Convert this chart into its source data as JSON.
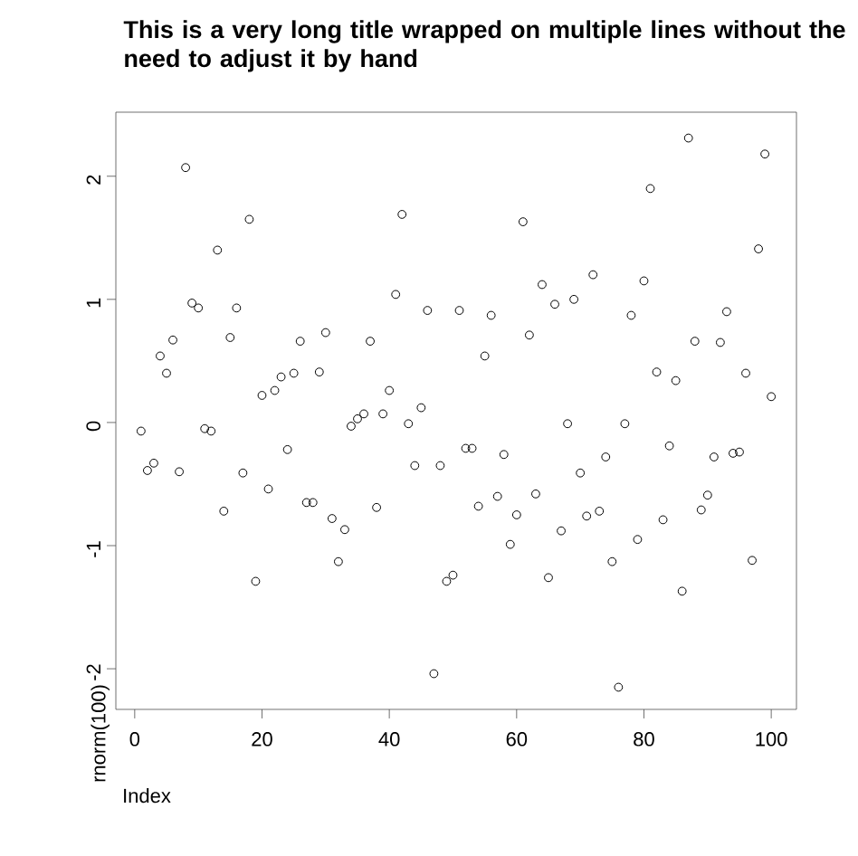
{
  "chart_data": {
    "type": "scatter",
    "title": "This is a very long title wrapped on multiple lines without the need to adjust it by hand",
    "xlabel": "Index",
    "ylabel": "rnorm(100)",
    "x": [
      1,
      2,
      3,
      4,
      5,
      6,
      7,
      8,
      9,
      10,
      11,
      12,
      13,
      14,
      15,
      16,
      17,
      18,
      19,
      20,
      21,
      22,
      23,
      24,
      25,
      26,
      27,
      28,
      29,
      30,
      31,
      32,
      33,
      34,
      35,
      36,
      37,
      38,
      39,
      40,
      41,
      42,
      43,
      44,
      45,
      46,
      47,
      48,
      49,
      50,
      51,
      52,
      53,
      54,
      55,
      56,
      57,
      58,
      59,
      60,
      61,
      62,
      63,
      64,
      65,
      66,
      67,
      68,
      69,
      70,
      71,
      72,
      73,
      74,
      75,
      76,
      77,
      78,
      79,
      80,
      81,
      82,
      83,
      84,
      85,
      86,
      87,
      88,
      89,
      90,
      91,
      92,
      93,
      94,
      95,
      96,
      97,
      98,
      99,
      100
    ],
    "values": [
      -0.07,
      -0.39,
      -0.33,
      0.54,
      0.4,
      0.67,
      -0.4,
      2.07,
      0.97,
      0.93,
      -0.05,
      -0.07,
      1.4,
      -0.72,
      0.69,
      0.93,
      -0.41,
      1.65,
      -1.29,
      0.22,
      -0.54,
      0.26,
      0.37,
      -0.22,
      0.4,
      0.66,
      -0.65,
      -0.65,
      0.41,
      0.73,
      -0.78,
      -1.13,
      -0.87,
      -0.03,
      0.03,
      0.07,
      0.66,
      -0.69,
      0.07,
      0.26,
      1.04,
      1.69,
      -0.01,
      -0.35,
      0.12,
      0.91,
      -2.04,
      -0.35,
      -1.29,
      -1.24,
      0.91,
      -0.21,
      -0.21,
      -0.68,
      0.54,
      0.87,
      -0.6,
      -0.26,
      -0.99,
      -0.75,
      1.63,
      0.71,
      -0.58,
      1.12,
      -1.26,
      0.96,
      -0.88,
      -0.01,
      1.0,
      -0.41,
      -0.76,
      1.2,
      -0.72,
      -0.28,
      -1.13,
      -2.15,
      -0.01,
      0.87,
      -0.95,
      1.15,
      1.9,
      0.41,
      -0.79,
      -0.19,
      0.34,
      -1.37,
      2.31,
      0.66,
      -0.71,
      -0.59,
      -0.28,
      0.65,
      0.9,
      -0.25,
      -0.24,
      0.4,
      -1.12,
      1.41,
      2.18,
      0.21
    ],
    "color": "#000000",
    "marker": "circle",
    "xlim": [
      -2.96,
      103.96
    ],
    "ylim": [
      -2.33,
      2.52
    ],
    "xticks": [
      0,
      20,
      40,
      60,
      80,
      100
    ],
    "yticks": [
      -2,
      -1,
      0,
      1,
      2
    ]
  }
}
